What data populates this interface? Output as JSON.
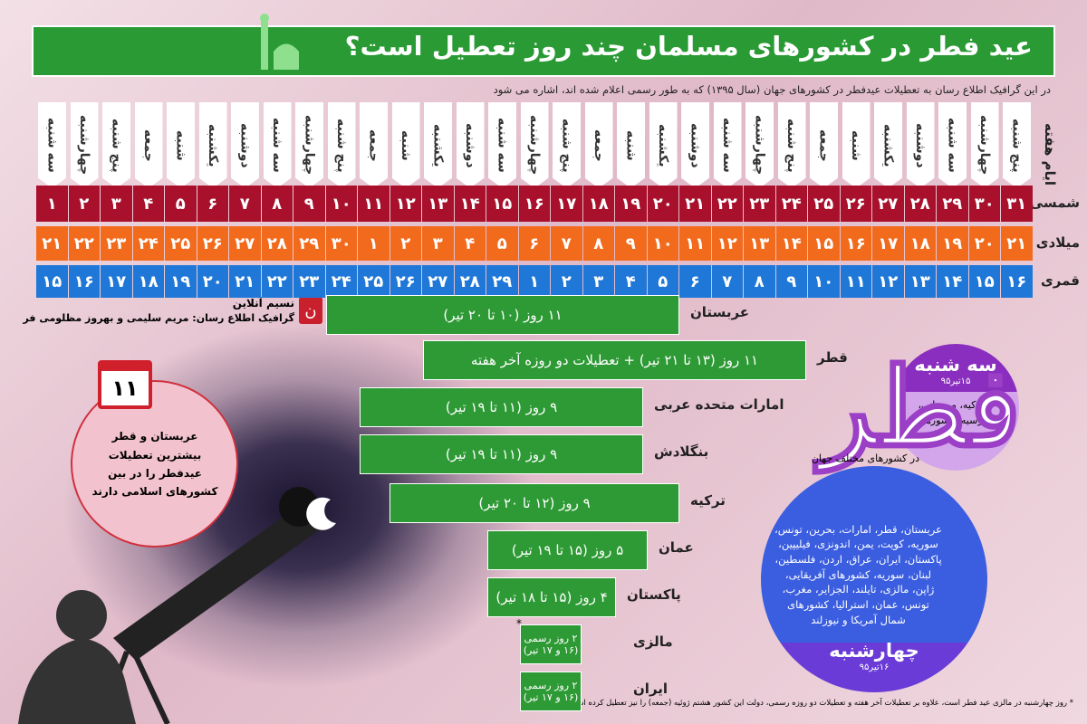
{
  "header": {
    "title": "عید فطر در کشورهای مسلمان چند روز تعطیل است؟",
    "subtitle": "در این گرافیک اطلاع رسان به تعطیلات عیدفطر در کشورهای جهان (سال ۱۳۹۵) که به طور رسمی اعلام شده اند، اشاره می شود"
  },
  "calendar": {
    "row_labels": {
      "weekday": "ایام هفته",
      "shamsi": "شمسی",
      "miladi": "میلادی",
      "qamari": "قمری"
    },
    "weekdays": [
      "سه شنبه",
      "چهارشنبه",
      "پنج شنبه",
      "جمعه",
      "شنبه",
      "یکشنبه",
      "دوشنبه",
      "سه شنبه",
      "چهارشنبه",
      "پنج شنبه",
      "جمعه",
      "شنبه",
      "یکشنبه",
      "دوشنبه",
      "سه شنبه",
      "چهارشنبه",
      "پنج شنبه",
      "جمعه",
      "شنبه",
      "یکشنبه",
      "دوشنبه",
      "سه شنبه",
      "چهارشنبه",
      "پنج شنبه",
      "جمعه",
      "شنبه",
      "یکشنبه",
      "دوشنبه",
      "سه شنبه",
      "چهارشنبه",
      "پنج شنبه"
    ],
    "shamsi": [
      "۱",
      "۲",
      "۳",
      "۴",
      "۵",
      "۶",
      "۷",
      "۸",
      "۹",
      "۱۰",
      "۱۱",
      "۱۲",
      "۱۳",
      "۱۴",
      "۱۵",
      "۱۶",
      "۱۷",
      "۱۸",
      "۱۹",
      "۲۰",
      "۲۱",
      "۲۲",
      "۲۳",
      "۲۴",
      "۲۵",
      "۲۶",
      "۲۷",
      "۲۸",
      "۲۹",
      "۳۰",
      "۳۱"
    ],
    "miladi": [
      "۲۱",
      "۲۲",
      "۲۳",
      "۲۴",
      "۲۵",
      "۲۶",
      "۲۷",
      "۲۸",
      "۲۹",
      "۳۰",
      "۱",
      "۲",
      "۳",
      "۴",
      "۵",
      "۶",
      "۷",
      "۸",
      "۹",
      "۱۰",
      "۱۱",
      "۱۲",
      "۱۳",
      "۱۴",
      "۱۵",
      "۱۶",
      "۱۷",
      "۱۸",
      "۱۹",
      "۲۰",
      "۲۱"
    ],
    "qamari": [
      "۱۵",
      "۱۶",
      "۱۷",
      "۱۸",
      "۱۹",
      "۲۰",
      "۲۱",
      "۲۲",
      "۲۳",
      "۲۴",
      "۲۵",
      "۲۶",
      "۲۷",
      "۲۸",
      "۲۹",
      "۱",
      "۲",
      "۳",
      "۴",
      "۵",
      "۶",
      "۷",
      "۸",
      "۹",
      "۱۰",
      "۱۱",
      "۱۲",
      "۱۳",
      "۱۴",
      "۱۵",
      "۱۶"
    ]
  },
  "credits": {
    "source": "نسیم آنلاین",
    "authors": "گرافیک اطلاع رسان: مریم سلیمی و بهروز مظلومی فر"
  },
  "highlight": {
    "number": "۱۱",
    "text": "عربستان و قطر بیشترین تعطیلات عیدفطر را در بین کشورهای اسلامی دارند"
  },
  "holidays": [
    {
      "country": "عربستان",
      "duration": "۱۱ روز (۱۰ تا ۲۰ تیر)"
    },
    {
      "country": "قطر",
      "duration": "۱۱ روز (۱۳ تا ۲۱ تیر) + تعطیلات دو روزه آخر هفته"
    },
    {
      "country": "امارات متحده عربی",
      "duration": "۹ روز (۱۱ تا ۱۹ تیر)"
    },
    {
      "country": "بنگلادش",
      "duration": "۹ روز (۱۱ تا ۱۹ تیر)"
    },
    {
      "country": "ترکیه",
      "duration": "۹ روز (۱۲ تا ۲۰ تیر)"
    },
    {
      "country": "عمان",
      "duration": "۵ روز (۱۵ تا ۱۹ تیر)"
    },
    {
      "country": "پاکستان",
      "duration": "۴ روز (۱۵ تا ۱۸ تیر)"
    },
    {
      "country": "مالزی",
      "duration": "۲ روز رسمی",
      "dates": "(۱۶ و ۱۷ تیر)",
      "mark": "*"
    },
    {
      "country": "ایران",
      "duration": "۲ روز رسمی",
      "dates": "(۱۶ و ۱۷ تیر)"
    }
  ],
  "tuesday": {
    "day": "سه شنبه",
    "date": "۱۵تیر۹۵",
    "countries": "ترکیه، موریتانی، روسیه، کشورهای حوزه بالکان"
  },
  "world_label": "در کشورهای مختلف جهان",
  "logo": "فطر",
  "wednesday": {
    "day": "چهارشنبه",
    "date": "۱۶تیر۹۵",
    "countries": "عربستان، قطر، امارات، بحرین، تونس، سوریه، کویت، یمن، اندونزی، فیلیپین، پاکستان، ایران، عراق، اردن، فلسطین، لبنان، سوریه، کشورهای آفریقایی، ژاپن، مالزی، تایلند، الجزایر، مغرب، تونس، عمان، استرالیا، کشورهای شمال آمریکا و نیوزلند"
  },
  "footnote": "* روز چهارشنبه در مالزی عید فطر است، علاوه بر تعطیلات آخر هفته و تعطیلات دو روزه رسمی، دولت این کشور هشتم ژوئیه (جمعه) را نیز تعطیل کرده است"
}
